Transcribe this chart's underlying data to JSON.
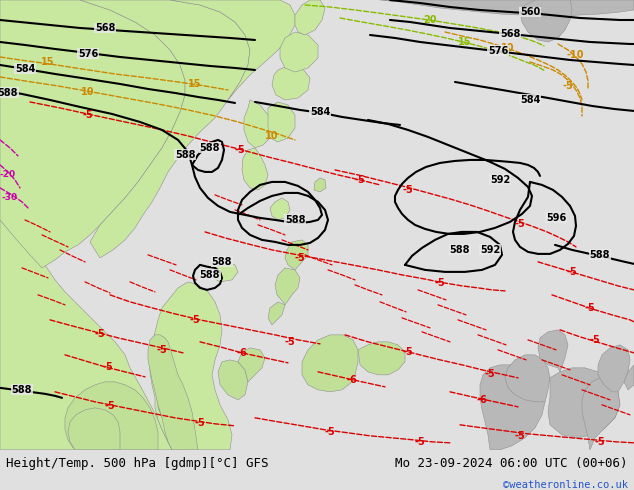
{
  "title_left": "Height/Temp. 500 hPa [gdmp][°C] GFS",
  "title_right": "Mo 23-09-2024 06:00 UTC (00+06)",
  "copyright": "©weatheronline.co.uk",
  "sea_color": "#e8e8e8",
  "land_color": "#c8e8a0",
  "land_color2": "#c0e098",
  "gray_land_color": "#b8b8b8",
  "bottom_bar_color": "#ffffff",
  "contour_color_height": "#000000",
  "contour_color_temp_pos_orange": "#cc8800",
  "contour_color_temp_pos_green": "#88bb00",
  "contour_color_temp_neg": "#dd0000",
  "contour_color_magenta": "#cc00aa",
  "label_fontsize": 7.0,
  "title_fontsize": 9.0,
  "copyright_fontsize": 7.5,
  "fig_bg": "#e0e0e0"
}
